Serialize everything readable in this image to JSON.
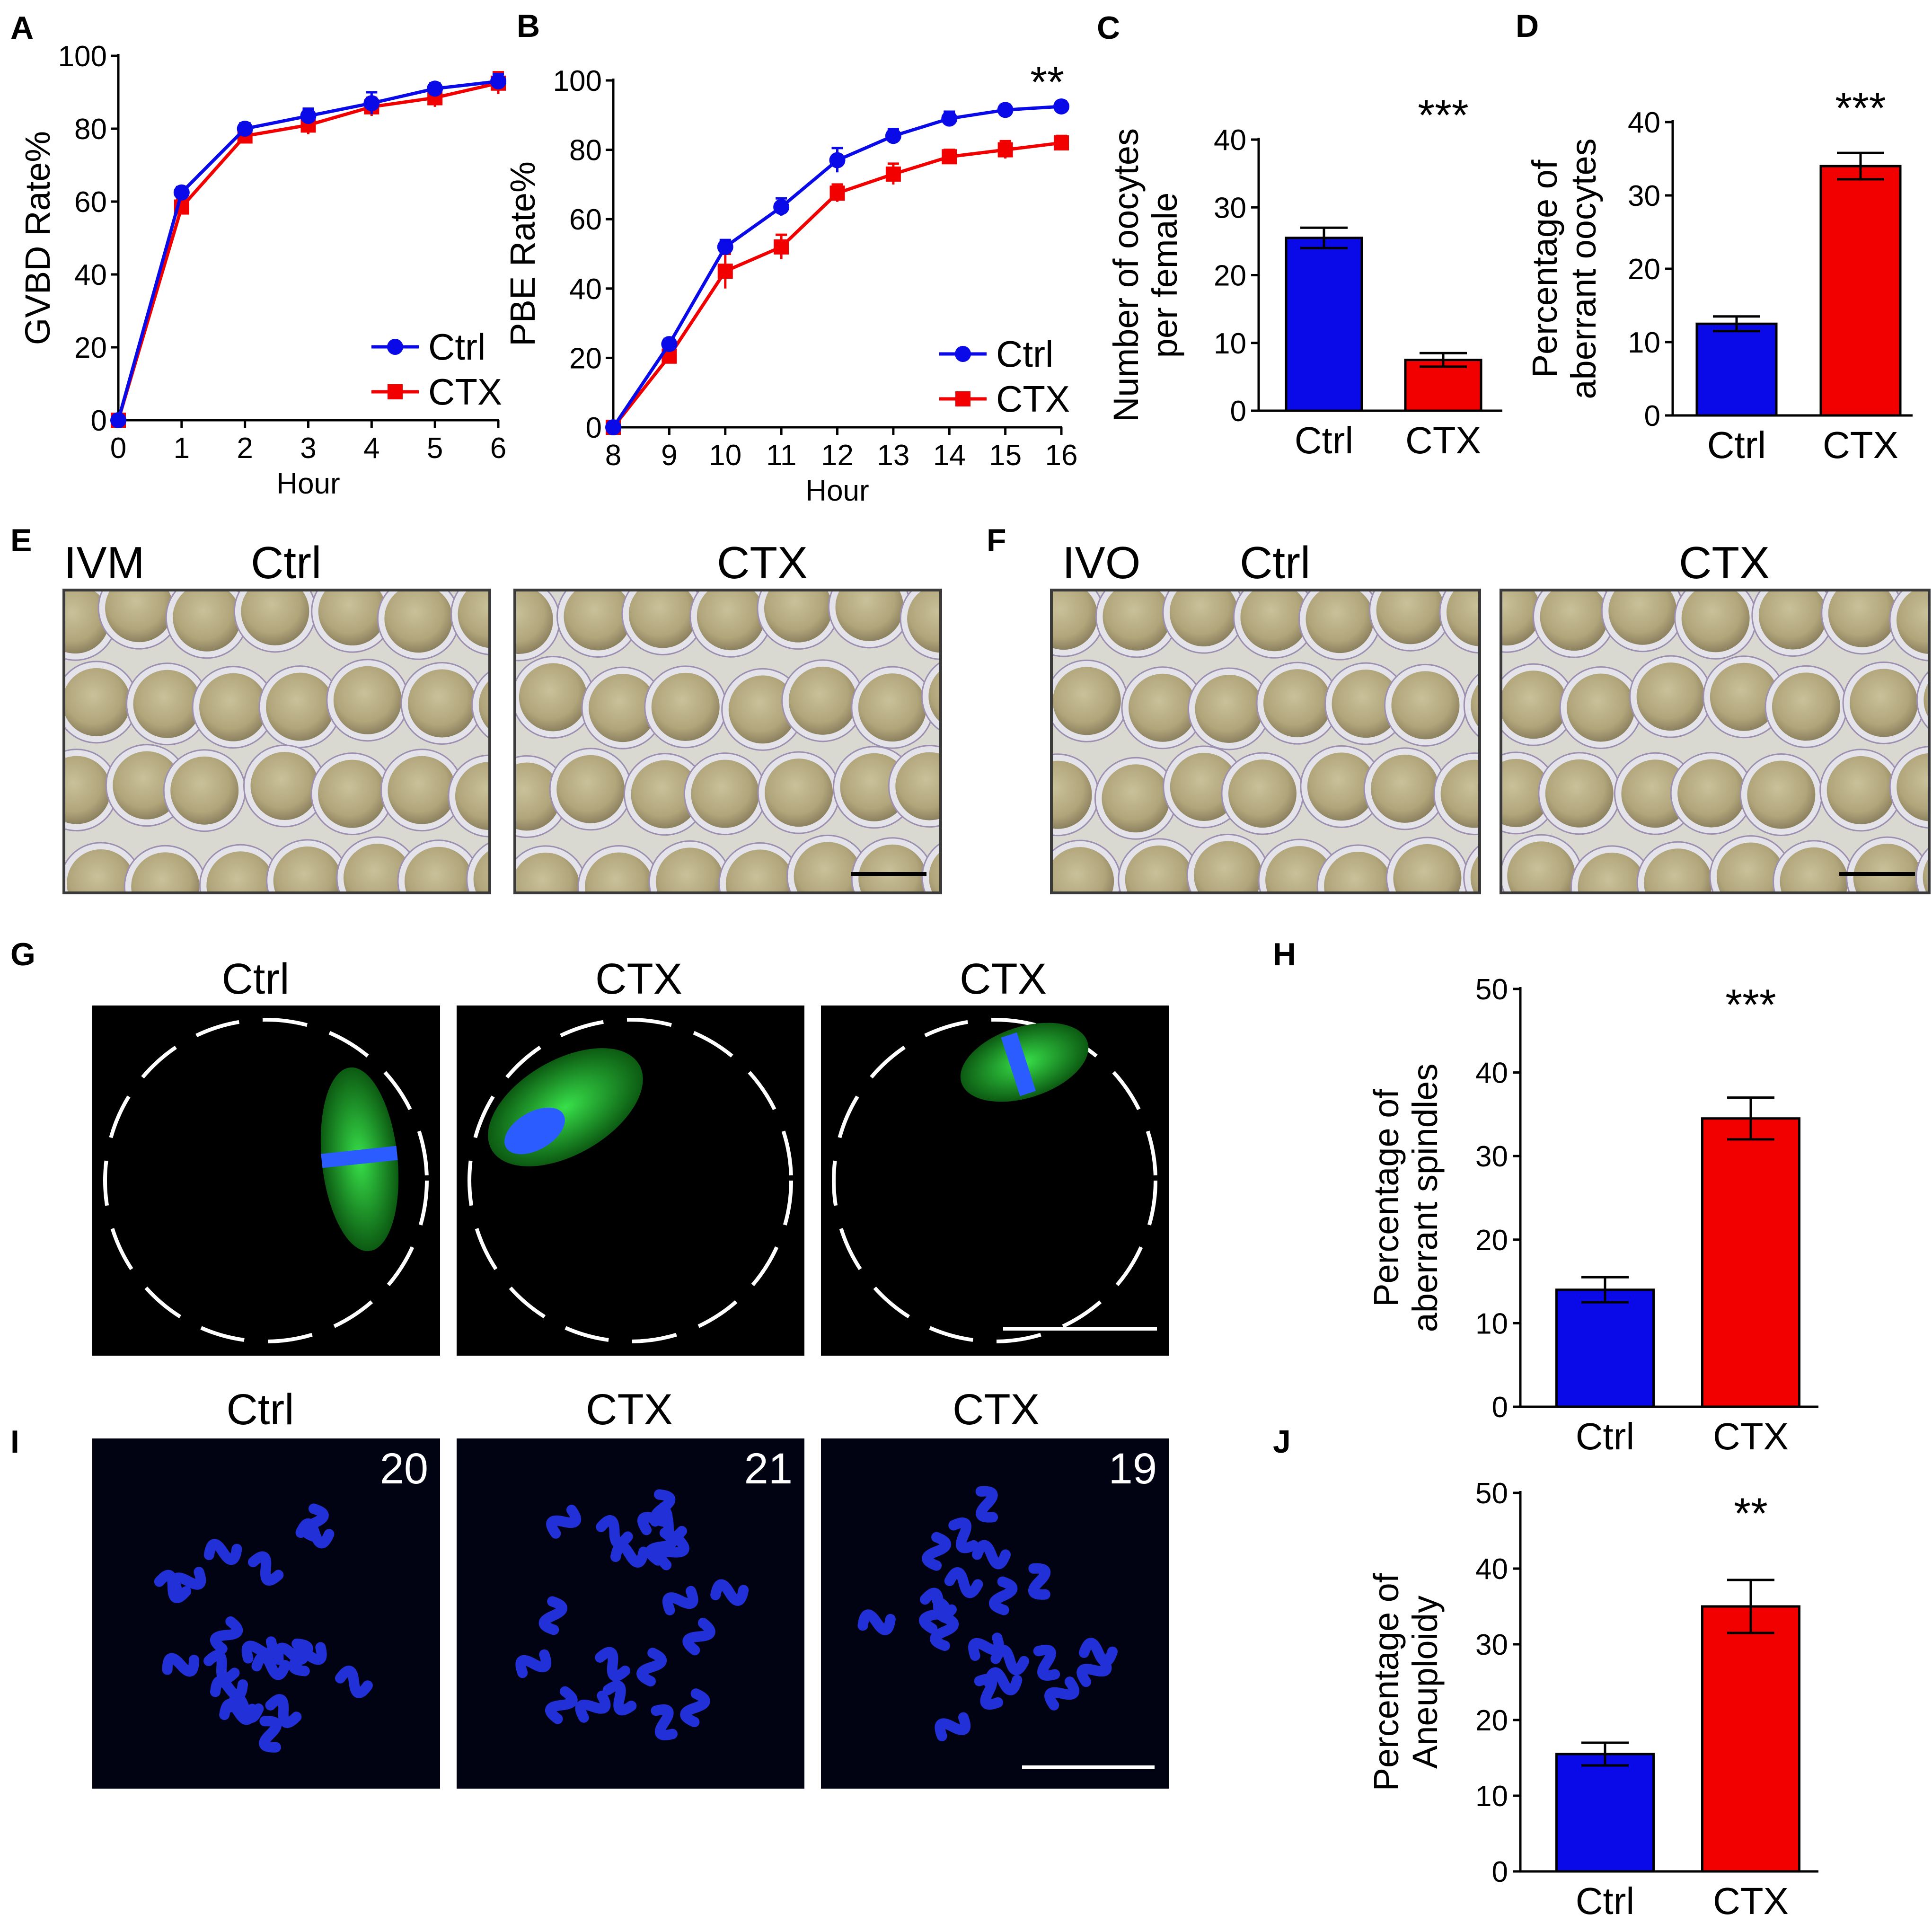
{
  "colors": {
    "ctrl": "#0a0ae8",
    "ctx": "#f20000",
    "axis": "#000000",
    "ctrl_mark": "#0000ff",
    "ctx_mark": "#ff0000"
  },
  "panels": {
    "A": "A",
    "B": "B",
    "C": "C",
    "D": "D",
    "E": "E",
    "F": "F",
    "G": "G",
    "H": "H",
    "I": "I",
    "J": "J"
  },
  "chart_data": [
    {
      "panel": "A",
      "type": "line",
      "xlabel": "Hour",
      "ylabel": "GVBD Rate%",
      "xlim": [
        0,
        6
      ],
      "ylim": [
        0,
        100
      ],
      "xticks": [
        "0",
        "1",
        "2",
        "3",
        "4",
        "5",
        "6"
      ],
      "yticks": [
        "0",
        "20",
        "40",
        "60",
        "80",
        "100"
      ],
      "legend_position": "bottom-right",
      "series": [
        {
          "name": "Ctrl",
          "x": [
            0,
            1,
            2,
            3,
            4,
            5,
            6
          ],
          "y": [
            0,
            62.5,
            80,
            83.5,
            87,
            91,
            93
          ],
          "err": [
            0,
            1.5,
            1.5,
            2,
            3,
            1.5,
            2
          ]
        },
        {
          "name": "CTX",
          "x": [
            0,
            1,
            2,
            3,
            4,
            5,
            6
          ],
          "y": [
            0,
            58.5,
            78,
            81,
            86,
            88.5,
            92.5
          ],
          "err": [
            0,
            2,
            2,
            2.5,
            2.5,
            2.5,
            3
          ]
        }
      ]
    },
    {
      "panel": "B",
      "type": "line",
      "xlabel": "Hour",
      "ylabel": "PBE Rate%",
      "xlim": [
        8,
        16
      ],
      "ylim": [
        0,
        100
      ],
      "xticks": [
        "8",
        "9",
        "10",
        "11",
        "12",
        "13",
        "14",
        "15",
        "16"
      ],
      "yticks": [
        "0",
        "20",
        "40",
        "60",
        "80",
        "100"
      ],
      "legend_position": "bottom-right",
      "significance": "**",
      "series": [
        {
          "name": "Ctrl",
          "x": [
            8,
            9,
            10,
            11,
            12,
            13,
            14,
            15,
            16
          ],
          "y": [
            0,
            24,
            52,
            63.5,
            77,
            84,
            89,
            91.5,
            92.5
          ],
          "err": [
            0,
            1.5,
            2,
            2.5,
            3.5,
            2,
            2,
            1.5,
            1.5
          ]
        },
        {
          "name": "CTX",
          "x": [
            8,
            9,
            10,
            11,
            12,
            13,
            14,
            15,
            16
          ],
          "y": [
            0,
            20.5,
            45,
            52,
            67.5,
            73,
            78,
            80,
            82
          ],
          "err": [
            0,
            2,
            5,
            3.5,
            2.5,
            3,
            2,
            2.5,
            2
          ]
        }
      ]
    },
    {
      "panel": "C",
      "type": "bar",
      "ylabel_lines": [
        "Number of oocytes",
        "per female"
      ],
      "categories": [
        "Ctrl",
        "CTX"
      ],
      "values": [
        25.5,
        7.5
      ],
      "err": [
        1.5,
        1.0
      ],
      "ylim": [
        0,
        40
      ],
      "yticks": [
        "0",
        "10",
        "20",
        "30",
        "40"
      ],
      "significance": "***"
    },
    {
      "panel": "D",
      "type": "bar",
      "ylabel_lines": [
        "Percentage of",
        "aberrant oocytes"
      ],
      "categories": [
        "Ctrl",
        "CTX"
      ],
      "values": [
        12.5,
        34
      ],
      "err": [
        1.0,
        1.8
      ],
      "ylim": [
        0,
        40
      ],
      "yticks": [
        "0",
        "10",
        "20",
        "30",
        "40"
      ],
      "significance": "***"
    },
    {
      "panel": "H",
      "type": "bar",
      "ylabel_lines": [
        "Percentage of",
        "aberrant spindles"
      ],
      "categories": [
        "Ctrl",
        "CTX"
      ],
      "values": [
        14,
        34.5
      ],
      "err": [
        1.5,
        2.5
      ],
      "ylim": [
        0,
        50
      ],
      "yticks": [
        "0",
        "10",
        "20",
        "30",
        "40",
        "50"
      ],
      "significance": "***"
    },
    {
      "panel": "J",
      "type": "bar",
      "ylabel_lines": [
        "Percentage of",
        "Aneuploidy"
      ],
      "categories": [
        "Ctrl",
        "CTX"
      ],
      "values": [
        15.5,
        35
      ],
      "err": [
        1.5,
        3.5
      ],
      "ylim": [
        0,
        50
      ],
      "yticks": [
        "0",
        "10",
        "20",
        "30",
        "40",
        "50"
      ],
      "significance": "**"
    }
  ],
  "images": {
    "E": {
      "tag": "IVM",
      "left": "Ctrl",
      "right": "CTX"
    },
    "F": {
      "tag": "IVO",
      "left": "Ctrl",
      "right": "CTX"
    },
    "G": {
      "titles": [
        "Ctrl",
        "CTX",
        "CTX"
      ]
    },
    "I": {
      "titles": [
        "Ctrl",
        "CTX",
        "CTX"
      ],
      "counts": [
        "20",
        "21",
        "19"
      ]
    }
  }
}
